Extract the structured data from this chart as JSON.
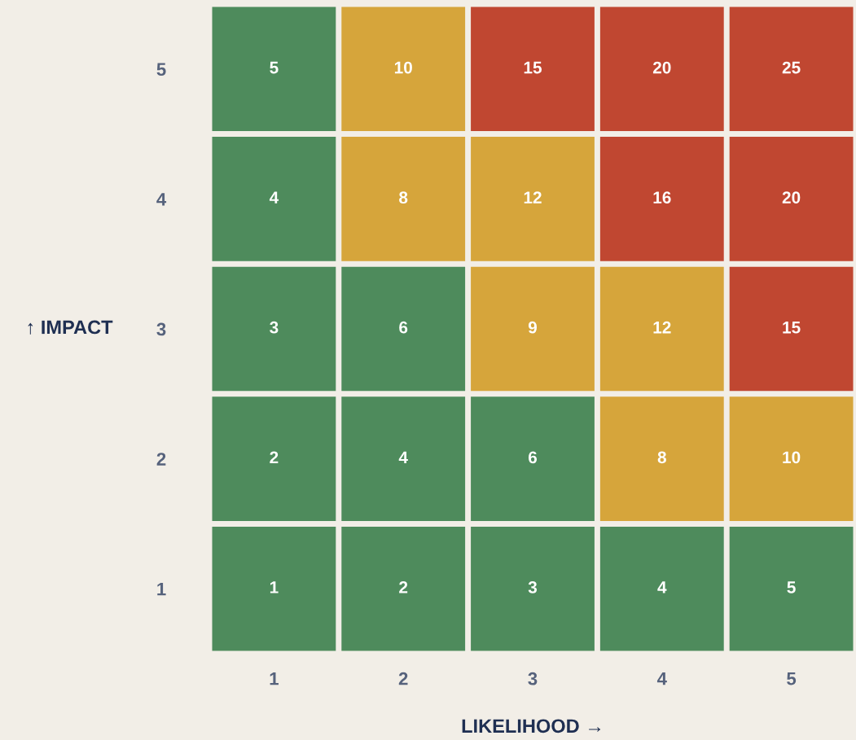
{
  "chart_data": {
    "type": "heatmap",
    "xlabel": "LIKELIHOOD →",
    "ylabel": "↑ IMPACT",
    "categories": [
      "1",
      "2",
      "3",
      "4",
      "5"
    ],
    "y_categories": [
      "5",
      "4",
      "3",
      "2",
      "1"
    ],
    "cells": [
      [
        5,
        10,
        15,
        20,
        25
      ],
      [
        4,
        8,
        12,
        16,
        20
      ],
      [
        3,
        6,
        9,
        12,
        15
      ],
      [
        2,
        4,
        6,
        8,
        10
      ],
      [
        1,
        2,
        3,
        4,
        5
      ]
    ],
    "colors": [
      [
        "#4e8b5c",
        "#d6a53b",
        "#c04731",
        "#c04731",
        "#c04731"
      ],
      [
        "#4e8b5c",
        "#d6a53b",
        "#d6a53b",
        "#c04731",
        "#c04731"
      ],
      [
        "#4e8b5c",
        "#4e8b5c",
        "#d6a53b",
        "#d6a53b",
        "#c04731"
      ],
      [
        "#4e8b5c",
        "#4e8b5c",
        "#4e8b5c",
        "#d6a53b",
        "#d6a53b"
      ],
      [
        "#4e8b5c",
        "#4e8b5c",
        "#4e8b5c",
        "#4e8b5c",
        "#4e8b5c"
      ]
    ],
    "data_labels": true,
    "grid": false,
    "legend": false
  }
}
